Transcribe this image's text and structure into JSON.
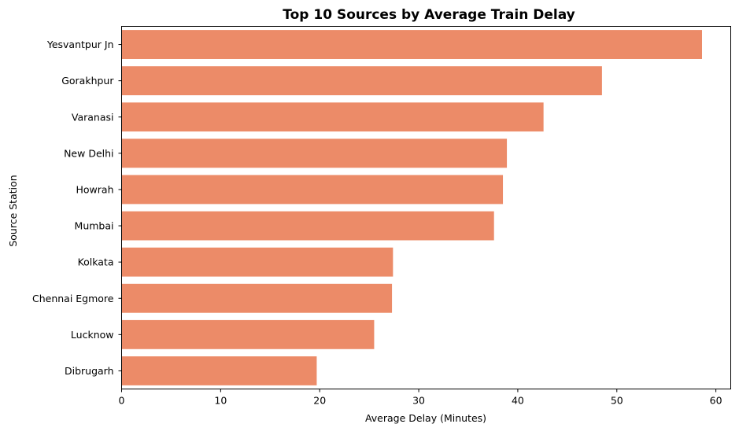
{
  "chart_data": {
    "type": "bar",
    "orientation": "horizontal",
    "title": "Top 10 Sources by Average Train Delay",
    "xlabel": "Average Delay (Minutes)",
    "ylabel": "Source Station",
    "categories": [
      "Yesvantpur Jn",
      "Gorakhpur",
      "Varanasi",
      "New Delhi",
      "Howrah",
      "Mumbai",
      "Kolkata",
      "Chennai Egmore",
      "Lucknow",
      "Dibrugarh"
    ],
    "values": [
      58.6,
      48.5,
      42.6,
      38.9,
      38.5,
      37.6,
      27.4,
      27.3,
      25.5,
      19.7
    ],
    "xlim": [
      0,
      61.5
    ],
    "xticks": [
      0,
      10,
      20,
      30,
      40,
      50,
      60
    ],
    "grid": false,
    "legend": "none",
    "bar_color": "#ec8b68"
  }
}
